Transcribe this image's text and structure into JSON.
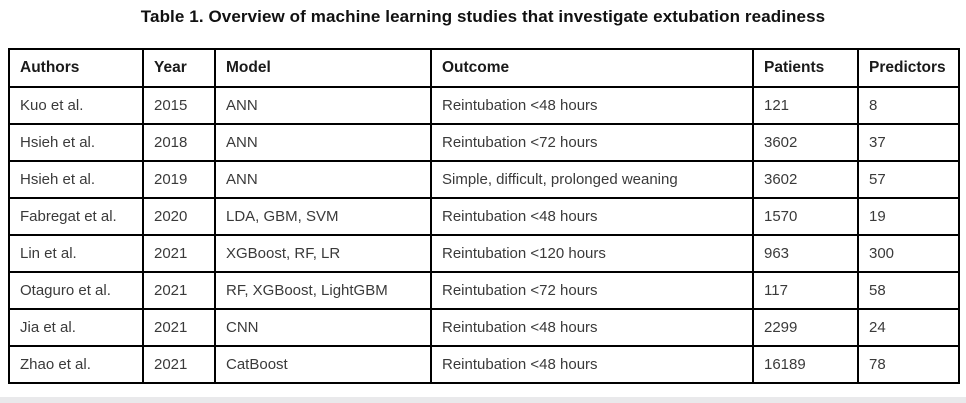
{
  "title": "Table 1. Overview of machine learning studies that investigate extubation readiness",
  "table": {
    "headers": [
      "Authors",
      "Year",
      "Model",
      "Outcome",
      "Patients",
      "Predictors"
    ],
    "rows": [
      [
        "Kuo et al.",
        "2015",
        "ANN",
        "Reintubation <48 hours",
        "121",
        "8"
      ],
      [
        "Hsieh et al.",
        "2018",
        "ANN",
        "Reintubation <72 hours",
        "3602",
        "37"
      ],
      [
        "Hsieh et al.",
        "2019",
        "ANN",
        "Simple, difficult, prolonged weaning",
        "3602",
        "57"
      ],
      [
        "Fabregat et al.",
        "2020",
        "LDA, GBM, SVM",
        "Reintubation <48 hours",
        "1570",
        "19"
      ],
      [
        "Lin et al.",
        "2021",
        "XGBoost, RF, LR",
        "Reintubation <120 hours",
        "963",
        "300"
      ],
      [
        "Otaguro et al.",
        "2021",
        "RF, XGBoost, LightGBM",
        "Reintubation <72 hours",
        "117",
        "58"
      ],
      [
        "Jia et al.",
        "2021",
        "CNN",
        "Reintubation <48 hours",
        "2299",
        "24"
      ],
      [
        "Zhao et al.",
        "2021",
        "CatBoost",
        "Reintubation <48 hours",
        "16189",
        "78"
      ]
    ]
  },
  "colors": {
    "border": "#000000",
    "header_text": "#1a1a1a",
    "cell_text": "#3a3a3a",
    "page_background": "#ffffff",
    "bottom_strip": "#e9e9eb"
  }
}
